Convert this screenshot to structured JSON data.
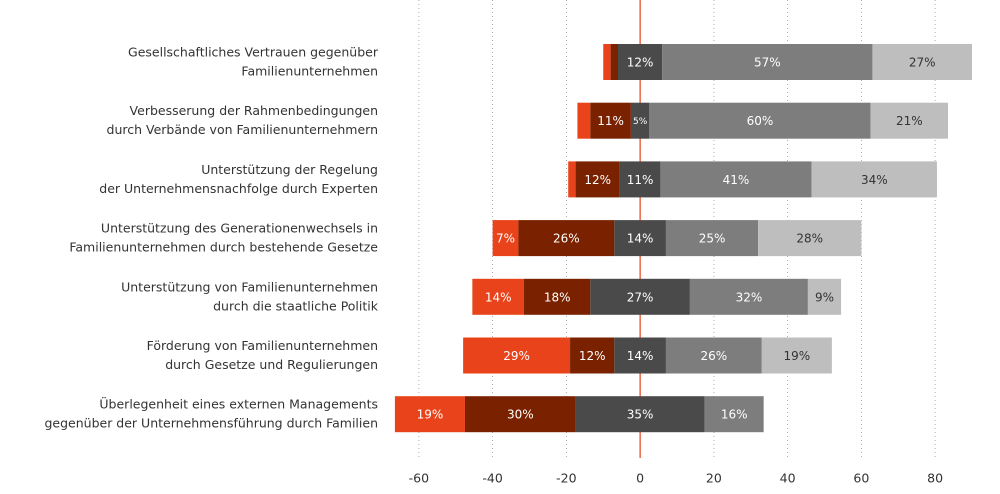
{
  "chart_data": {
    "type": "diverging-bar",
    "categories": [
      [
        "Gesellschaftliches Vertrauen gegenüber",
        "Familienunternehmen"
      ],
      [
        "Verbesserung der Rahmenbedingungen",
        "durch Verbände von Familienunternehmern"
      ],
      [
        "Unterstützung der Regelung",
        "der Unternehmensnachfolge durch Experten"
      ],
      [
        "Unterstützung des Generationenwechsels in",
        "Familienunternehmen durch bestehende Gesetze"
      ],
      [
        "Unterstützung von Familienunternehmen",
        "durch die staatliche Politik"
      ],
      [
        "Förderung von Familienunternehmen",
        "durch Gesetze und Regulierungen"
      ],
      [
        "Überlegenheit eines externen Managements",
        "gegenüber der Unternehmensführung durch Familien"
      ]
    ],
    "series": [
      {
        "color": "#e8431a",
        "side": "negative",
        "values": [
          2,
          3.5,
          2,
          7,
          14,
          29,
          19
        ],
        "value_labels": [
          null,
          null,
          null,
          "7%",
          "14%",
          "29%",
          "19%"
        ]
      },
      {
        "color": "#7a2200",
        "side": "negative",
        "values": [
          2,
          11,
          12,
          26,
          18,
          12,
          30
        ],
        "value_labels": [
          null,
          "11%",
          "12%",
          "26%",
          "18%",
          "12%",
          "30%"
        ]
      },
      {
        "color": "#4a4a4a",
        "side": "center",
        "values": [
          12,
          5,
          11,
          14,
          27,
          14,
          35
        ],
        "value_labels": [
          "12%",
          "5%",
          "11%",
          "14%",
          "27%",
          "14%",
          "35%"
        ]
      },
      {
        "color": "#7d7d7d",
        "side": "positive",
        "values": [
          57,
          60,
          41,
          25,
          32,
          26,
          16
        ],
        "value_labels": [
          "57%",
          "60%",
          "41%",
          "25%",
          "32%",
          "26%",
          "16%"
        ]
      },
      {
        "color": "#bebebe",
        "side": "positive",
        "values": [
          27,
          21,
          34,
          28,
          9,
          19,
          null
        ],
        "value_labels": [
          "27%",
          "21%",
          "34%",
          "28%",
          "9%",
          "19%",
          null
        ]
      }
    ],
    "xlim": [
      -70,
      90
    ],
    "xticks": [
      -60,
      -40,
      -20,
      0,
      20,
      40,
      60,
      80
    ],
    "grid": true
  }
}
